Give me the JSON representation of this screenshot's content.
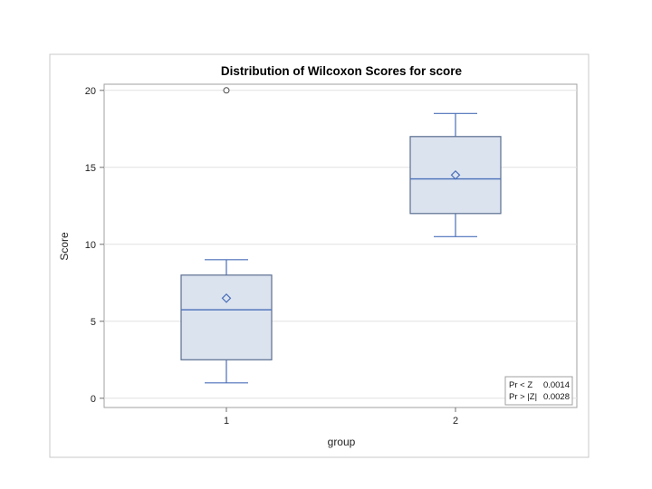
{
  "chart_data": {
    "type": "box",
    "title": "Distribution of Wilcoxon Scores for score",
    "xlabel": "group",
    "ylabel": "Score",
    "categories": [
      "1",
      "2"
    ],
    "ylim": [
      -0.6,
      20.4
    ],
    "y_ticks": [
      0,
      5,
      10,
      15,
      20
    ],
    "grid": true,
    "boxes": [
      {
        "category": "1",
        "min": 1,
        "q1": 2.5,
        "median": 5.75,
        "q3": 8,
        "max": 9,
        "mean": 6.5,
        "outliers": [
          20
        ]
      },
      {
        "category": "2",
        "min": 10.5,
        "q1": 12,
        "median": 14.25,
        "q3": 17,
        "max": 18.5,
        "mean": 14.5,
        "outliers": []
      }
    ],
    "stats_inset": [
      {
        "label": "Pr < Z",
        "value": "0.0014"
      },
      {
        "label": "Pr > |Z|",
        "value": "0.0028"
      }
    ],
    "colors": {
      "box_fill": "#dbe3ef",
      "box_edge": "#5a6e90",
      "median_line": "#4a6fb8",
      "mean_marker": "#4a6fb8"
    }
  }
}
